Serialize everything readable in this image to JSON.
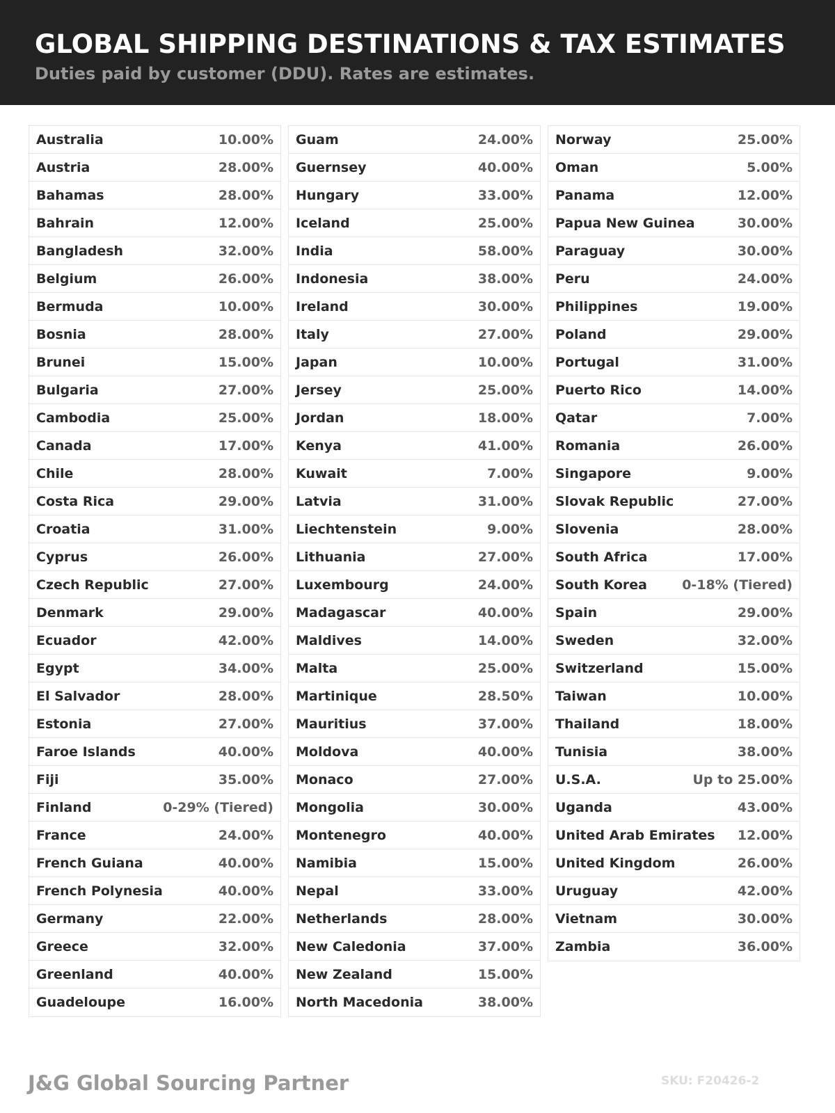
{
  "header": {
    "title": "GLOBAL SHIPPING DESTINATIONS & TAX ESTIMATES",
    "subtitle": "Duties paid by customer (DDU). Rates are estimates."
  },
  "columns": [
    [
      [
        "Australia",
        "10.00%"
      ],
      [
        "Austria",
        "28.00%"
      ],
      [
        "Bahamas",
        "28.00%"
      ],
      [
        "Bahrain",
        "12.00%"
      ],
      [
        "Bangladesh",
        "32.00%"
      ],
      [
        "Belgium",
        "26.00%"
      ],
      [
        "Bermuda",
        "10.00%"
      ],
      [
        "Bosnia",
        "28.00%"
      ],
      [
        "Brunei",
        "15.00%"
      ],
      [
        "Bulgaria",
        "27.00%"
      ],
      [
        "Cambodia",
        "25.00%"
      ],
      [
        "Canada",
        "17.00%"
      ],
      [
        "Chile",
        "28.00%"
      ],
      [
        "Costa Rica",
        "29.00%"
      ],
      [
        "Croatia",
        "31.00%"
      ],
      [
        "Cyprus",
        "26.00%"
      ],
      [
        "Czech Republic",
        "27.00%"
      ],
      [
        "Denmark",
        "29.00%"
      ],
      [
        "Ecuador",
        "42.00%"
      ],
      [
        "Egypt",
        "34.00%"
      ],
      [
        "El Salvador",
        "28.00%"
      ],
      [
        "Estonia",
        "27.00%"
      ],
      [
        "Faroe Islands",
        "40.00%"
      ],
      [
        "Fiji",
        "35.00%"
      ],
      [
        "Finland",
        "0-29% (Tiered)"
      ],
      [
        "France",
        "24.00%"
      ],
      [
        "French Guiana",
        "40.00%"
      ],
      [
        "French Polynesia",
        "40.00%"
      ],
      [
        "Germany",
        "22.00%"
      ],
      [
        "Greece",
        "32.00%"
      ],
      [
        "Greenland",
        "40.00%"
      ],
      [
        "Guadeloupe",
        "16.00%"
      ]
    ],
    [
      [
        "Guam",
        "24.00%"
      ],
      [
        "Guernsey",
        "40.00%"
      ],
      [
        "Hungary",
        "33.00%"
      ],
      [
        "Iceland",
        "25.00%"
      ],
      [
        "India",
        "58.00%"
      ],
      [
        "Indonesia",
        "38.00%"
      ],
      [
        "Ireland",
        "30.00%"
      ],
      [
        "Italy",
        "27.00%"
      ],
      [
        "Japan",
        "10.00%"
      ],
      [
        "Jersey",
        "25.00%"
      ],
      [
        "Jordan",
        "18.00%"
      ],
      [
        "Kenya",
        "41.00%"
      ],
      [
        "Kuwait",
        "7.00%"
      ],
      [
        "Latvia",
        "31.00%"
      ],
      [
        "Liechtenstein",
        "9.00%"
      ],
      [
        "Lithuania",
        "27.00%"
      ],
      [
        "Luxembourg",
        "24.00%"
      ],
      [
        "Madagascar",
        "40.00%"
      ],
      [
        "Maldives",
        "14.00%"
      ],
      [
        "Malta",
        "25.00%"
      ],
      [
        "Martinique",
        "28.50%"
      ],
      [
        "Mauritius",
        "37.00%"
      ],
      [
        "Moldova",
        "40.00%"
      ],
      [
        "Monaco",
        "27.00%"
      ],
      [
        "Mongolia",
        "30.00%"
      ],
      [
        "Montenegro",
        "40.00%"
      ],
      [
        "Namibia",
        "15.00%"
      ],
      [
        "Nepal",
        "33.00%"
      ],
      [
        "Netherlands",
        "28.00%"
      ],
      [
        "New Caledonia",
        "37.00%"
      ],
      [
        "New Zealand",
        "15.00%"
      ],
      [
        "North Macedonia",
        "38.00%"
      ]
    ],
    [
      [
        "Norway",
        "25.00%"
      ],
      [
        "Oman",
        "5.00%"
      ],
      [
        "Panama",
        "12.00%"
      ],
      [
        "Papua New Guinea",
        "30.00%"
      ],
      [
        "Paraguay",
        "30.00%"
      ],
      [
        "Peru",
        "24.00%"
      ],
      [
        "Philippines",
        "19.00%"
      ],
      [
        "Poland",
        "29.00%"
      ],
      [
        "Portugal",
        "31.00%"
      ],
      [
        "Puerto Rico",
        "14.00%"
      ],
      [
        "Qatar",
        "7.00%"
      ],
      [
        "Romania",
        "26.00%"
      ],
      [
        "Singapore",
        "9.00%"
      ],
      [
        "Slovak Republic",
        "27.00%"
      ],
      [
        "Slovenia",
        "28.00%"
      ],
      [
        "South Africa",
        "17.00%"
      ],
      [
        "South Korea",
        "0-18% (Tiered)"
      ],
      [
        "Spain",
        "29.00%"
      ],
      [
        "Sweden",
        "32.00%"
      ],
      [
        "Switzerland",
        "15.00%"
      ],
      [
        "Taiwan",
        "10.00%"
      ],
      [
        "Thailand",
        "18.00%"
      ],
      [
        "Tunisia",
        "38.00%"
      ],
      [
        "U.S.A.",
        "Up to 25.00%"
      ],
      [
        "Uganda",
        "43.00%"
      ],
      [
        "United Arab Emirates",
        "12.00%"
      ],
      [
        "United Kingdom",
        "26.00%"
      ],
      [
        "Uruguay",
        "42.00%"
      ],
      [
        "Vietnam",
        "30.00%"
      ],
      [
        "Zambia",
        "36.00%"
      ]
    ]
  ],
  "footer": {
    "brand": "J&G Global Sourcing Partner",
    "sku": "SKU: F20426-2"
  },
  "colors": {
    "header_bg": "#222222",
    "title": "#ffffff",
    "subtitle": "#9a9a9a",
    "border": "#e6e6e6"
  }
}
